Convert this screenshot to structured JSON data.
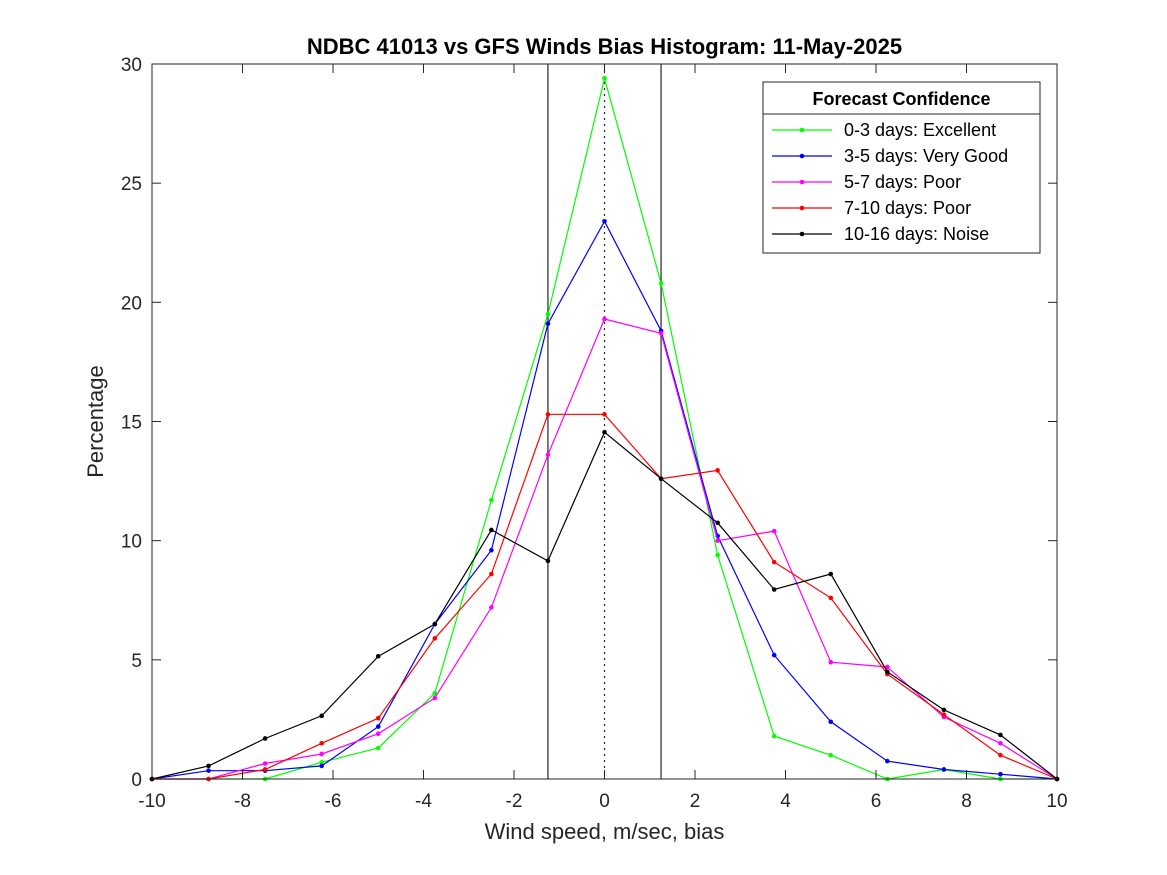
{
  "chart_data": {
    "type": "line",
    "title": "NDBC 41013 vs GFS Winds Bias Histogram: 11-May-2025",
    "xlabel": "Wind speed, m/sec, bias",
    "ylabel": "Percentage",
    "xlim": [
      -10,
      10
    ],
    "ylim": [
      0,
      30
    ],
    "xticks": [
      -10,
      -8,
      -6,
      -4,
      -2,
      0,
      2,
      4,
      6,
      8,
      10
    ],
    "yticks": [
      0,
      5,
      10,
      15,
      20,
      25,
      30
    ],
    "xtick_labels": [
      "-10",
      "-8",
      "-6",
      "-4",
      "-2",
      "0",
      "2",
      "4",
      "6",
      "8",
      "10"
    ],
    "ytick_labels": [
      "0",
      "5",
      "10",
      "15",
      "20",
      "25",
      "30"
    ],
    "x": [
      -10,
      -8.75,
      -7.5,
      -6.25,
      -5,
      -3.75,
      -2.5,
      -1.25,
      0,
      1.25,
      2.5,
      3.75,
      5,
      6.25,
      7.5,
      8.75,
      10
    ],
    "reference_lines": {
      "solid_x": [
        -1.25,
        1.25
      ],
      "dotted_x": [
        0
      ]
    },
    "legend": {
      "title": "Forecast Confidence",
      "position": "top-right"
    },
    "grid": false,
    "series": [
      {
        "name": "0-3 days: Excellent",
        "color": "#00ff00",
        "values": [
          0,
          0,
          0,
          0.7,
          1.3,
          3.6,
          11.7,
          19.5,
          29.4,
          20.8,
          9.4,
          1.8,
          1.0,
          0,
          0.4,
          0,
          0
        ]
      },
      {
        "name": "3-5 days: Very Good",
        "color": "#0000ff",
        "values": [
          0,
          0.35,
          0.35,
          0.55,
          2.2,
          6.5,
          9.6,
          19.1,
          23.4,
          18.8,
          10.2,
          5.2,
          2.4,
          0.75,
          0.4,
          0.2,
          0
        ]
      },
      {
        "name": "5-7 days: Poor",
        "color": "#ff00ff",
        "values": [
          0,
          0,
          0.65,
          1.05,
          1.9,
          3.4,
          7.2,
          13.6,
          19.3,
          18.7,
          10.0,
          10.4,
          4.9,
          4.7,
          2.6,
          1.5,
          0
        ]
      },
      {
        "name": "7-10 days: Poor",
        "color": "#ff0000",
        "values": [
          0,
          0,
          0.4,
          1.5,
          2.55,
          5.9,
          8.6,
          15.3,
          15.3,
          12.6,
          12.95,
          9.1,
          7.6,
          4.4,
          2.7,
          1.0,
          0
        ]
      },
      {
        "name": "10-16 days: Noise",
        "color": "#000000",
        "values": [
          0,
          0.55,
          1.7,
          2.65,
          5.15,
          6.5,
          10.45,
          9.15,
          14.55,
          12.6,
          10.75,
          7.95,
          8.6,
          4.5,
          2.9,
          1.85,
          0
        ]
      }
    ]
  }
}
